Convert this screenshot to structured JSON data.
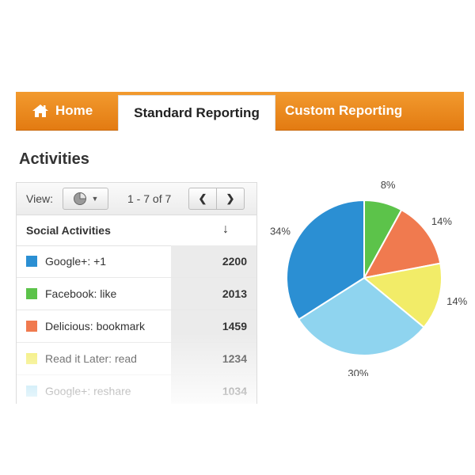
{
  "nav": {
    "tabs": [
      {
        "label": "Home"
      },
      {
        "label": "Standard Reporting"
      },
      {
        "label": "Custom Reporting"
      }
    ]
  },
  "page": {
    "heading": "Activities"
  },
  "toolbar": {
    "view_label": "View:",
    "view_icon": "pie-chart-icon",
    "range": "1 - 7 of 7",
    "prev_icon": "chevron-left-icon",
    "next_icon": "chevron-right-icon"
  },
  "table": {
    "header": "Social Activities",
    "sort_icon": "arrow-down-icon",
    "rows": [
      {
        "label": "Google+: +1",
        "value": "2200",
        "color": "#2b8fd3"
      },
      {
        "label": "Facebook: like",
        "value": "2013",
        "color": "#5cc34a"
      },
      {
        "label": "Delicious: bookmark",
        "value": "1459",
        "color": "#f07a4f"
      },
      {
        "label": "Read it Later: read",
        "value": "1234",
        "color": "#f2ec68"
      },
      {
        "label": "Google+: reshare",
        "value": "1034",
        "color": "#8fd4ef"
      }
    ]
  },
  "chart_data": {
    "type": "pie",
    "slices": [
      {
        "label": "8%",
        "value": 8,
        "color": "#5cc34a"
      },
      {
        "label": "14%",
        "value": 14,
        "color": "#f07a4f"
      },
      {
        "label": "14%",
        "value": 14,
        "color": "#f2ec68"
      },
      {
        "label": "30%",
        "value": 30,
        "color": "#8fd4ef"
      },
      {
        "label": "34%",
        "value": 34,
        "color": "#2b8fd3"
      }
    ]
  }
}
